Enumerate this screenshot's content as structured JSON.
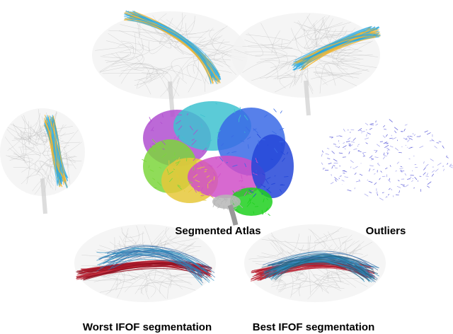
{
  "captions": [
    "Segmented Atlas",
    "Outliers",
    "Worst IFOF segmentation",
    "Best IFOF segmentation"
  ]
}
